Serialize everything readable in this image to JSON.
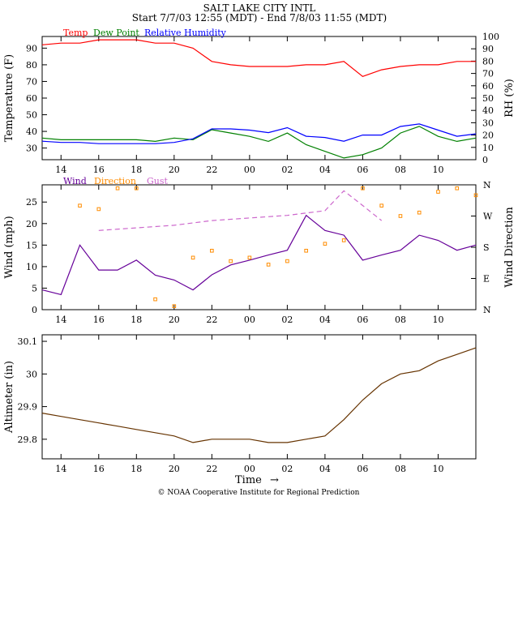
{
  "header": {
    "station": "SALT LAKE CITY INTL",
    "period": "Start 7/7/03 12:55 (MDT) - End 7/8/03 11:55 (MDT)"
  },
  "footer": {
    "time_label": "Time",
    "arrow": "→",
    "credit": "© NOAA Cooperative Institute for Regional Prediction"
  },
  "colors": {
    "temp": "#ff0000",
    "dew": "#008000",
    "rh": "#0000ff",
    "wind": "#660099",
    "dir": "#ff8c00",
    "gust": "#cc66cc",
    "alt": "#663300"
  },
  "x_axis": {
    "hours": [
      13,
      14,
      15,
      16,
      17,
      18,
      19,
      20,
      21,
      22,
      23,
      24,
      25,
      26,
      27,
      28,
      29,
      30,
      31,
      32,
      33,
      34,
      35,
      36
    ],
    "tick_labels": [
      "14",
      "16",
      "18",
      "20",
      "22",
      "00",
      "02",
      "04",
      "06",
      "08",
      "10"
    ],
    "tick_positions": [
      14,
      16,
      18,
      20,
      22,
      24,
      26,
      28,
      30,
      32,
      34
    ]
  },
  "chart_data": [
    {
      "type": "line",
      "id": "temperature",
      "ylabel": "Temperature (F)",
      "y2label": "RH (%)",
      "ylim": [
        23,
        97
      ],
      "yticks": [
        30,
        40,
        50,
        60,
        70,
        80,
        90
      ],
      "y2lim": [
        0,
        100
      ],
      "y2ticks": [
        0,
        10,
        20,
        30,
        40,
        50,
        60,
        70,
        80,
        90,
        100
      ],
      "legend_position": "top-left",
      "legend": [
        "Temp",
        "Dew Point",
        "Relative Humidity"
      ],
      "series": [
        {
          "name": "Temp",
          "axis": "left",
          "color_key": "temp",
          "values": [
            92,
            93,
            93,
            95,
            95,
            95,
            93,
            93,
            90,
            82,
            80,
            79,
            79,
            79,
            80,
            80,
            82,
            73,
            77,
            79,
            80,
            80,
            82,
            82
          ]
        },
        {
          "name": "Dew Point",
          "axis": "left",
          "color_key": "dew",
          "values": [
            36,
            35,
            35,
            35,
            35,
            35,
            34,
            36,
            35,
            41,
            39,
            37,
            34,
            39,
            32,
            28,
            24,
            26,
            30,
            39,
            43,
            37,
            34,
            36
          ]
        },
        {
          "name": "Relative Humidity",
          "axis": "right",
          "color_key": "rh",
          "values": [
            15,
            14,
            14,
            13,
            13,
            13,
            13,
            14,
            17,
            25,
            25,
            24,
            22,
            26,
            19,
            18,
            15,
            20,
            20,
            27,
            29,
            24,
            19,
            21
          ]
        }
      ]
    },
    {
      "type": "line",
      "id": "wind",
      "ylabel": "Wind (mph)",
      "y2label": "Wind Direction",
      "ylim": [
        0,
        29
      ],
      "yticks": [
        0,
        5,
        10,
        15,
        20,
        25
      ],
      "y2_labels": [
        "N",
        "E",
        "S",
        "W",
        "N"
      ],
      "legend_position": "top-left",
      "legend": [
        "Wind",
        "Direction",
        "Gust"
      ],
      "series": [
        {
          "name": "Wind",
          "axis": "left",
          "color_key": "wind",
          "values": [
            4.6,
            3.5,
            15,
            9.2,
            9.2,
            11.5,
            8,
            6.9,
            4.6,
            8.1,
            10.4,
            11.5,
            12.7,
            13.8,
            21.9,
            18.4,
            17.3,
            11.5,
            12.7,
            13.8,
            17.3,
            16.1,
            13.8,
            15
          ]
        },
        {
          "name": "Gust",
          "axis": "left",
          "color_key": "gust",
          "style": "dashed",
          "x": [
            16,
            18,
            20,
            22,
            24,
            26,
            28,
            29,
            30,
            31
          ],
          "values": [
            18.4,
            19,
            19.6,
            20.7,
            21.3,
            21.9,
            23,
            27.6,
            24.2,
            20.7
          ]
        },
        {
          "name": "Direction",
          "axis": "right",
          "color_key": "dir",
          "style": "points",
          "x": [
            15,
            16,
            17,
            18,
            19,
            20,
            21,
            22,
            23,
            24,
            25,
            26,
            27,
            28,
            29,
            30,
            31,
            32,
            33,
            34,
            35,
            36
          ],
          "values": [
            300,
            290,
            350,
            350,
            30,
            10,
            150,
            170,
            140,
            150,
            130,
            140,
            170,
            190,
            200,
            350,
            300,
            270,
            280,
            340,
            350,
            330
          ]
        }
      ]
    },
    {
      "type": "line",
      "id": "altimeter",
      "ylabel": "Altimeter (in)",
      "ylim": [
        29.74,
        30.12
      ],
      "yticks": [
        29.8,
        29.9,
        30,
        30.1
      ],
      "ytick_labels": [
        "29.8",
        "29.9",
        "30",
        "30.1"
      ],
      "series": [
        {
          "name": "Altimeter",
          "axis": "left",
          "color_key": "alt",
          "values": [
            29.88,
            29.87,
            29.86,
            29.85,
            29.84,
            29.83,
            29.82,
            29.81,
            29.79,
            29.8,
            29.8,
            29.8,
            29.79,
            29.79,
            29.8,
            29.81,
            29.86,
            29.92,
            29.97,
            30.0,
            30.01,
            30.04,
            30.06,
            30.08
          ]
        }
      ]
    }
  ]
}
